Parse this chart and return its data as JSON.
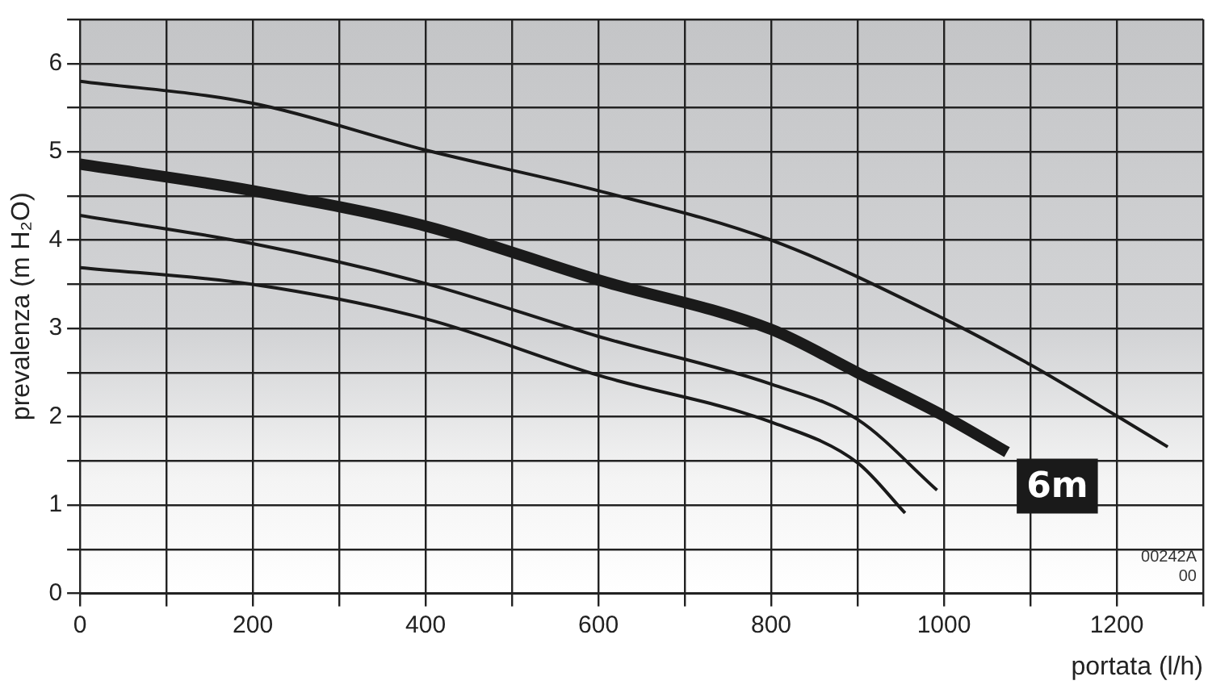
{
  "chart_data": {
    "type": "line",
    "xlabel": "portata (l/h)",
    "ylabel": "prevalenza (m H₂O)",
    "xlim": [
      0,
      1300
    ],
    "ylim": [
      0,
      6.5
    ],
    "xticks": [
      0,
      {
        "value": 100,
        "label": null
      },
      200,
      {
        "value": 300,
        "label": null
      },
      400,
      {
        "value": 500,
        "label": null
      },
      600,
      {
        "value": 700,
        "label": null
      },
      800,
      {
        "value": 900,
        "label": null
      },
      1000,
      {
        "value": 1100,
        "label": null
      },
      1200,
      {
        "value": 1300,
        "label": null
      }
    ],
    "yticks": [
      0,
      {
        "value": 0.5,
        "label": null
      },
      1,
      {
        "value": 1.5,
        "label": null
      },
      2,
      {
        "value": 2.5,
        "label": null
      },
      3,
      {
        "value": 3.5,
        "label": null
      },
      4,
      {
        "value": 4.5,
        "label": null
      },
      5,
      {
        "value": 5.5,
        "label": null
      },
      6,
      {
        "value": 6.5,
        "label": null
      }
    ],
    "grid": true,
    "legend": false,
    "marker": "none",
    "line_style": "solid",
    "series": [
      {
        "color": "#1a1a1a",
        "x": [
          0,
          200,
          400,
          600,
          800,
          1000,
          1100,
          1200,
          1259
        ],
        "values": [
          5.8,
          5.55,
          5.02,
          4.56,
          4.0,
          3.11,
          2.59,
          2.01,
          1.66
        ]
      },
      {
        "name": "6m",
        "color": "#1a1a1a",
        "x": [
          0,
          200,
          400,
          600,
          800,
          900,
          1000,
          1073
        ],
        "values": [
          4.86,
          4.56,
          4.16,
          3.55,
          2.99,
          2.5,
          2.01,
          1.6
        ]
      },
      {
        "color": "#1a1a1a",
        "x": [
          0,
          200,
          400,
          600,
          800,
          900,
          992
        ],
        "values": [
          4.28,
          3.96,
          3.51,
          2.91,
          2.37,
          1.97,
          1.17
        ]
      },
      {
        "color": "#1a1a1a",
        "x": [
          0,
          200,
          400,
          600,
          800,
          900,
          955
        ],
        "values": [
          3.69,
          3.5,
          3.11,
          2.47,
          1.94,
          1.48,
          0.91
        ]
      }
    ],
    "annotations": [
      "00242A\n00"
    ]
  }
}
